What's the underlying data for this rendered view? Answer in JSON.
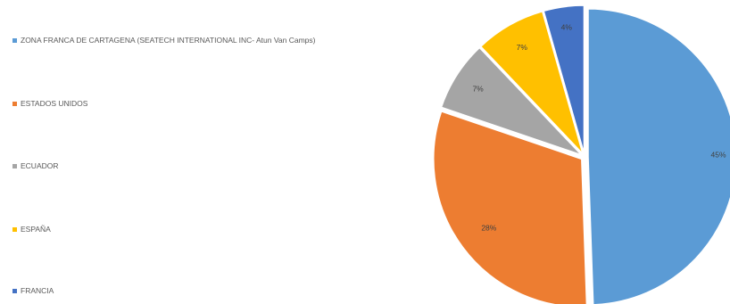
{
  "chart_data": {
    "type": "pie",
    "categories": [
      "ZONA FRANCA  DE CARTAGENA (SEATECH INTERNATIONAL INC- Atun Van Camps)",
      "ESTADOS UNIDOS",
      "ECUADOR",
      "ESPAÑA",
      "FRANCIA"
    ],
    "values": [
      45,
      28,
      7,
      7,
      4
    ],
    "labels": [
      "45%",
      "28%",
      "7%",
      "7%",
      "4%"
    ],
    "colors": [
      "#5B9BD5",
      "#ED7D31",
      "#A5A5A5",
      "#FFC000",
      "#4472C4"
    ],
    "legend_position": "left",
    "exploded": true
  }
}
